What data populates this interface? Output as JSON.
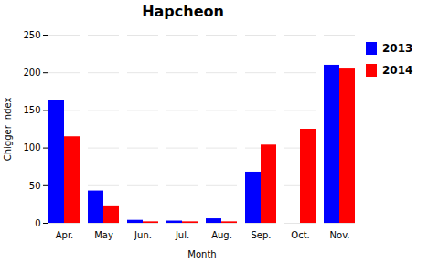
{
  "chart_data": {
    "type": "bar",
    "title": "Hapcheon",
    "xlabel": "Month",
    "ylabel": "Chigger index",
    "categories": [
      "Apr.",
      "May",
      "Jun.",
      "Jul.",
      "Aug.",
      "Sep.",
      "Oct.",
      "Nov."
    ],
    "series": [
      {
        "name": "2013",
        "color": "#0000FF",
        "values": [
          163,
          43,
          4,
          3,
          6,
          68,
          0,
          210
        ]
      },
      {
        "name": "2014",
        "color": "#FF0000",
        "values": [
          115,
          22,
          2,
          2,
          2,
          104,
          125,
          205
        ]
      }
    ],
    "ylim": [
      0,
      250
    ],
    "yticks": [
      0,
      50,
      100,
      150,
      200,
      250
    ],
    "grid": true,
    "legend": "right"
  }
}
